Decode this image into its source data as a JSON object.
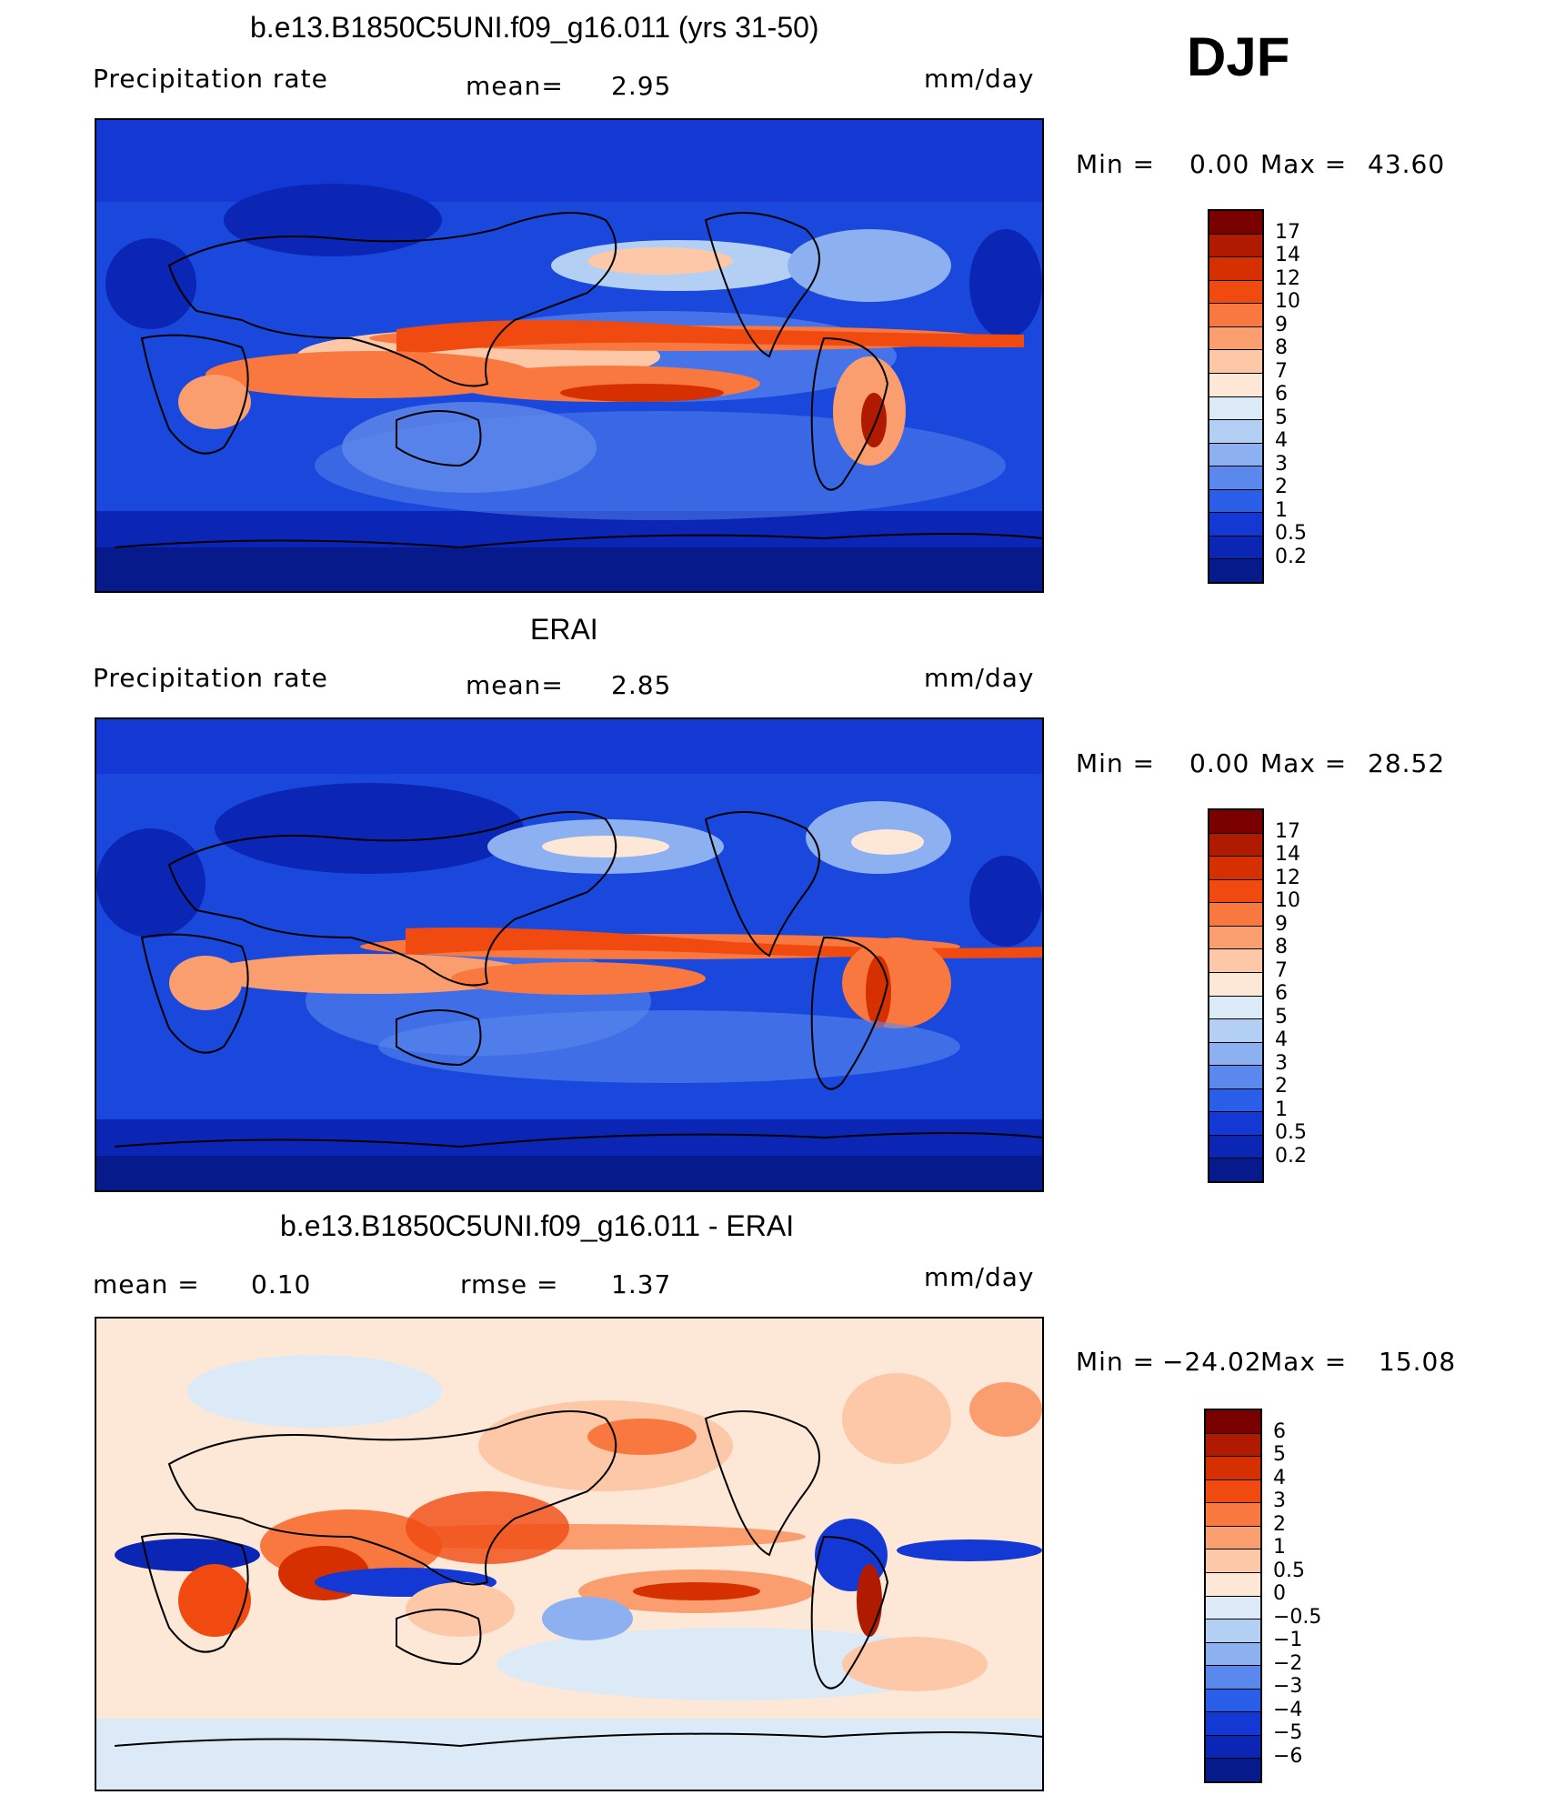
{
  "season": "DJF",
  "panels": [
    {
      "title": "b.e13.B1850C5UNI.f09_g16.011 (yrs 31-50)",
      "variable": "Precipitation  rate",
      "stat_label": "mean=",
      "stat_value": "2.95",
      "units": "mm/day",
      "min_label": "Min  =",
      "min_value": "0.00",
      "max_label": "Max  =",
      "max_value": "43.60",
      "colorbar_ticks": [
        "17",
        "14",
        "12",
        "10",
        "9",
        "8",
        "7",
        "6",
        "5",
        "4",
        "3",
        "2",
        "1",
        "0.5",
        "0.2"
      ]
    },
    {
      "title": "ERAI",
      "variable": "Precipitation  rate",
      "stat_label": "mean=",
      "stat_value": "2.85",
      "units": "mm/day",
      "min_label": "Min  =",
      "min_value": "0.00",
      "max_label": "Max  =",
      "max_value": "28.52",
      "colorbar_ticks": [
        "17",
        "14",
        "12",
        "10",
        "9",
        "8",
        "7",
        "6",
        "5",
        "4",
        "3",
        "2",
        "1",
        "0.5",
        "0.2"
      ]
    },
    {
      "title": "b.e13.B1850C5UNI.f09_g16.011 - ERAI",
      "mean_label": "mean  =",
      "mean_value": "0.10",
      "rmse_label": "rmse  =",
      "rmse_value": "1.37",
      "units": "mm/day",
      "min_label": "Min  =",
      "min_value": "−24.02",
      "max_label": "Max  =",
      "max_value": "15.08",
      "colorbar_ticks": [
        "6",
        "5",
        "4",
        "3",
        "2",
        "1",
        "0.5",
        "0",
        "−0.5",
        "−1",
        "−2",
        "−3",
        "−4",
        "−5",
        "−6"
      ]
    }
  ],
  "colors": {
    "precip_scale": [
      "#7a0000",
      "#b01a00",
      "#d63000",
      "#f04a10",
      "#f87840",
      "#fa9e70",
      "#fcc8a8",
      "#fde8d8",
      "#dceaf8",
      "#b4cff4",
      "#8cb0f0",
      "#5a88ec",
      "#2a5ee8",
      "#1438d4",
      "#0b26b4",
      "#061a8c"
    ],
    "diff_scale": [
      "#7a0000",
      "#b01a00",
      "#d63000",
      "#f04a10",
      "#f87840",
      "#fa9e70",
      "#fcc8a8",
      "#fde8d8",
      "#dceaf8",
      "#b4cff4",
      "#8cb0f0",
      "#5a88ec",
      "#2a5ee8",
      "#1438d4",
      "#0b26b4",
      "#061a8c"
    ]
  }
}
